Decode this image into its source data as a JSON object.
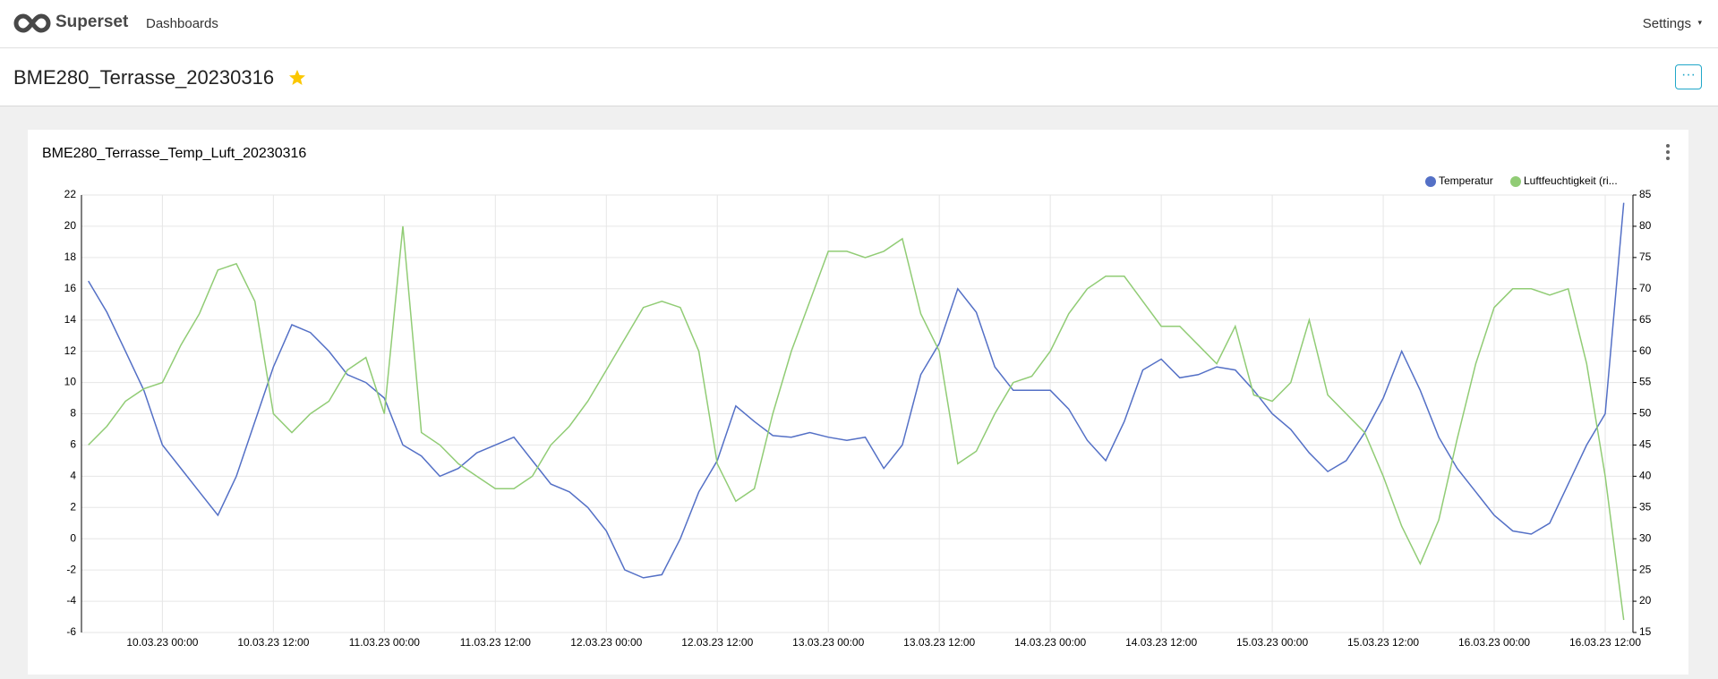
{
  "nav": {
    "brand": "Superset",
    "links": [
      "Dashboards"
    ],
    "settings": "Settings"
  },
  "dashboard": {
    "title": "BME280_Terrasse_20230316"
  },
  "chart_data": {
    "type": "line",
    "title": "BME280_Terrasse_Temp_Luft_20230316",
    "x": [
      "09.03.23 16:00",
      "09.03.23 18:00",
      "09.03.23 20:00",
      "09.03.23 22:00",
      "10.03.23 00:00",
      "10.03.23 02:00",
      "10.03.23 04:00",
      "10.03.23 06:00",
      "10.03.23 08:00",
      "10.03.23 10:00",
      "10.03.23 12:00",
      "10.03.23 14:00",
      "10.03.23 16:00",
      "10.03.23 18:00",
      "10.03.23 20:00",
      "10.03.23 22:00",
      "11.03.23 00:00",
      "11.03.23 02:00",
      "11.03.23 04:00",
      "11.03.23 06:00",
      "11.03.23 08:00",
      "11.03.23 10:00",
      "11.03.23 12:00",
      "11.03.23 14:00",
      "11.03.23 16:00",
      "11.03.23 18:00",
      "11.03.23 20:00",
      "11.03.23 22:00",
      "12.03.23 00:00",
      "12.03.23 02:00",
      "12.03.23 04:00",
      "12.03.23 06:00",
      "12.03.23 08:00",
      "12.03.23 10:00",
      "12.03.23 12:00",
      "12.03.23 14:00",
      "12.03.23 16:00",
      "12.03.23 18:00",
      "12.03.23 20:00",
      "12.03.23 22:00",
      "13.03.23 00:00",
      "13.03.23 02:00",
      "13.03.23 04:00",
      "13.03.23 06:00",
      "13.03.23 08:00",
      "13.03.23 10:00",
      "13.03.23 12:00",
      "13.03.23 14:00",
      "13.03.23 16:00",
      "13.03.23 18:00",
      "13.03.23 20:00",
      "13.03.23 22:00",
      "14.03.23 00:00",
      "14.03.23 02:00",
      "14.03.23 04:00",
      "14.03.23 06:00",
      "14.03.23 08:00",
      "14.03.23 10:00",
      "14.03.23 12:00",
      "14.03.23 14:00",
      "14.03.23 16:00",
      "14.03.23 18:00",
      "14.03.23 20:00",
      "14.03.23 22:00",
      "15.03.23 00:00",
      "15.03.23 02:00",
      "15.03.23 04:00",
      "15.03.23 06:00",
      "15.03.23 08:00",
      "15.03.23 10:00",
      "15.03.23 12:00",
      "15.03.23 14:00",
      "15.03.23 16:00",
      "15.03.23 18:00",
      "15.03.23 20:00",
      "15.03.23 22:00",
      "16.03.23 00:00",
      "16.03.23 02:00",
      "16.03.23 04:00",
      "16.03.23 06:00",
      "16.03.23 08:00",
      "16.03.23 10:00",
      "16.03.23 12:00",
      "16.03.23 14:00"
    ],
    "series": [
      {
        "name": "Temperatur",
        "color": "#5470c6",
        "values": [
          16.5,
          14.5,
          12,
          9.5,
          6,
          4.5,
          3,
          1.5,
          4,
          7.5,
          11,
          13.7,
          13.2,
          12,
          10.5,
          10,
          9,
          6,
          5.3,
          4,
          4.5,
          5.5,
          6,
          6.5,
          5,
          3.5,
          3,
          2,
          0.5,
          -2,
          -2.5,
          -2.3,
          0,
          3,
          5,
          8.5,
          7.5,
          6.6,
          6.5,
          6.8,
          6.5,
          6.3,
          6.5,
          4.5,
          6,
          10.5,
          12.5,
          16,
          14.5,
          11,
          9.5,
          9.5,
          9.5,
          8.3,
          6.3,
          5,
          7.5,
          10.8,
          11.5,
          10.3,
          10.5,
          11,
          10.8,
          9.5,
          8,
          7,
          5.5,
          4.3,
          5,
          6.8,
          9,
          12,
          9.5,
          6.5,
          4.5,
          3,
          1.5,
          0.5,
          0.3,
          1,
          3.5,
          6,
          8,
          21.5
        ]
      },
      {
        "name": "Luftfeuchtigkeit (ri...",
        "color": "#91cc75",
        "axis": "y2",
        "values": [
          45,
          48,
          52,
          54,
          55,
          61,
          66,
          73,
          74,
          68,
          50,
          47,
          50,
          52,
          57,
          59,
          50,
          80,
          47,
          45,
          42,
          40,
          38,
          38,
          40,
          45,
          48,
          52,
          57,
          62,
          67,
          68,
          67,
          60,
          42,
          36,
          38,
          50,
          60,
          68,
          76,
          76,
          75,
          76,
          78,
          66,
          60,
          42,
          44,
          50,
          55,
          56,
          60,
          66,
          70,
          72,
          72,
          68,
          64,
          64,
          61,
          58,
          64,
          53,
          52,
          55,
          65,
          53,
          50,
          47,
          40,
          32,
          26,
          33,
          46,
          58,
          67,
          70,
          70,
          69,
          70,
          58,
          40,
          17
        ]
      }
    ],
    "xlim": [
      "09.03.23 15:15",
      "16.03.23 15:00"
    ],
    "xticks": [
      "10.03.23 00:00",
      "10.03.23 12:00",
      "11.03.23 00:00",
      "11.03.23 12:00",
      "12.03.23 00:00",
      "12.03.23 12:00",
      "13.03.23 00:00",
      "13.03.23 12:00",
      "14.03.23 00:00",
      "14.03.23 12:00",
      "15.03.23 00:00",
      "15.03.23 12:00",
      "16.03.23 00:00",
      "16.03.23 12:00"
    ],
    "ylim": [
      -6,
      22
    ],
    "yticks": [
      -6,
      -4,
      -2,
      0,
      2,
      4,
      6,
      8,
      10,
      12,
      14,
      16,
      18,
      20,
      22
    ],
    "y2lim": [
      15,
      85
    ],
    "y2ticks": [
      15,
      20,
      25,
      30,
      35,
      40,
      45,
      50,
      55,
      60,
      65,
      70,
      75,
      80,
      85
    ],
    "grid": true,
    "legend": "top-right"
  }
}
